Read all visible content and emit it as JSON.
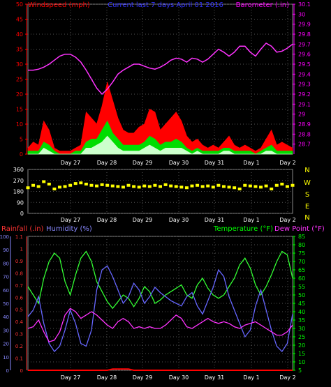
{
  "chart_data": [
    {
      "type": "line",
      "panel": "wind_baro",
      "title": "Current last 7 days April 01 2016",
      "left_axis": {
        "label": "Windspeed (mph)",
        "ticks": [
          0,
          5,
          10,
          15,
          20,
          25,
          30,
          35,
          40,
          45,
          50
        ],
        "ylim": [
          0,
          50
        ],
        "color": "#ff0000"
      },
      "right_axis": {
        "label": "Barometer (.in)",
        "ticks": [
          "28.7",
          "28.8",
          "28.9",
          "29",
          "29.1",
          "29.2",
          "29.3",
          "29.4",
          "29.5",
          "29.6",
          "29.7",
          "29.8",
          "29.9",
          "30",
          "30.1"
        ],
        "ylim": [
          28.6,
          30.1
        ],
        "color": "#ff00ff"
      },
      "x_ticks": [
        "Day 27",
        "Day 28",
        "Day 29",
        "Day 30",
        "Day 31",
        "Day 1",
        "Day 2"
      ],
      "series": [
        {
          "name": "Barometer",
          "color": "#ff33ff",
          "x": [
            0,
            2,
            4,
            6,
            8,
            10,
            12,
            14,
            16,
            18,
            20,
            22,
            24,
            26,
            28,
            30,
            32,
            34,
            36,
            38,
            40,
            42,
            44,
            46,
            48,
            50,
            52,
            54,
            56,
            58,
            60,
            62,
            64,
            66,
            68,
            70,
            72,
            74,
            76,
            78,
            80,
            82,
            84,
            86,
            88,
            90,
            92,
            94,
            96,
            98,
            100
          ],
          "y": [
            29.44,
            29.44,
            29.45,
            29.47,
            29.5,
            29.54,
            29.58,
            29.6,
            29.6,
            29.57,
            29.52,
            29.44,
            29.35,
            29.26,
            29.2,
            29.25,
            29.32,
            29.4,
            29.44,
            29.47,
            29.5,
            29.5,
            29.48,
            29.46,
            29.45,
            29.47,
            29.5,
            29.54,
            29.56,
            29.55,
            29.52,
            29.56,
            29.55,
            29.52,
            29.55,
            29.6,
            29.65,
            29.62,
            29.58,
            29.62,
            29.68,
            29.68,
            29.62,
            29.58,
            29.65,
            29.71,
            29.68,
            29.62,
            29.63,
            29.66,
            29.7
          ]
        },
        {
          "name": "Wind gust",
          "color": "#ff0000",
          "x": [
            0,
            2,
            4,
            6,
            8,
            10,
            12,
            14,
            16,
            18,
            20,
            22,
            24,
            26,
            28,
            30,
            32,
            34,
            36,
            38,
            40,
            42,
            44,
            46,
            48,
            50,
            52,
            54,
            56,
            58,
            60,
            62,
            64,
            66,
            68,
            70,
            72,
            74,
            76,
            78,
            80,
            82,
            84,
            86,
            88,
            90,
            92,
            94,
            96,
            98,
            100
          ],
          "y": [
            2,
            4,
            3,
            11,
            8,
            2,
            1,
            1,
            1,
            2,
            3,
            14,
            12,
            10,
            16,
            24,
            18,
            12,
            8,
            7,
            7,
            9,
            10,
            15,
            14,
            8,
            10,
            12,
            14,
            11,
            6,
            4,
            5,
            3,
            2,
            3,
            2,
            4,
            6,
            3,
            2,
            3,
            2,
            1,
            2,
            5,
            8,
            3,
            4,
            3,
            2
          ]
        },
        {
          "name": "Wind average",
          "color": "#00dd00",
          "x": [
            0,
            2,
            4,
            6,
            8,
            10,
            12,
            14,
            16,
            18,
            20,
            22,
            24,
            26,
            28,
            30,
            32,
            34,
            36,
            38,
            40,
            42,
            44,
            46,
            48,
            50,
            52,
            54,
            56,
            58,
            60,
            62,
            64,
            66,
            68,
            70,
            72,
            74,
            76,
            78,
            80,
            82,
            84,
            86,
            88,
            90,
            92,
            94,
            96,
            98,
            100
          ],
          "y": [
            1,
            1,
            1,
            4,
            3,
            1,
            0,
            0,
            0,
            1,
            1,
            4,
            5,
            5,
            8,
            11,
            7,
            5,
            3,
            3,
            3,
            3,
            4,
            6,
            5,
            3,
            4,
            4,
            5,
            4,
            2,
            1,
            2,
            1,
            1,
            1,
            1,
            2,
            2,
            1,
            1,
            1,
            1,
            0,
            1,
            2,
            3,
            1,
            1,
            1,
            1
          ]
        },
        {
          "name": "Wind low",
          "color": "#ccffcc",
          "x": [
            0,
            2,
            4,
            6,
            8,
            10,
            12,
            14,
            16,
            18,
            20,
            22,
            24,
            26,
            28,
            30,
            32,
            34,
            36,
            38,
            40,
            42,
            44,
            46,
            48,
            50,
            52,
            54,
            56,
            58,
            60,
            62,
            64,
            66,
            68,
            70,
            72,
            74,
            76,
            78,
            80,
            82,
            84,
            86,
            88,
            90,
            92,
            94,
            96,
            98,
            100
          ],
          "y": [
            0,
            0,
            0,
            2,
            1,
            0,
            0,
            0,
            0,
            0,
            0,
            2,
            2,
            3,
            4,
            6,
            4,
            2,
            1,
            1,
            1,
            1,
            2,
            3,
            2,
            1,
            2,
            2,
            2,
            2,
            1,
            0,
            1,
            0,
            0,
            0,
            0,
            1,
            1,
            0,
            0,
            0,
            0,
            0,
            0,
            1,
            1,
            0,
            0,
            0,
            0
          ]
        }
      ]
    },
    {
      "type": "scatter",
      "panel": "wind_direction",
      "left_axis": {
        "ticks": [
          0,
          90,
          180,
          270,
          360
        ],
        "ylim": [
          0,
          360
        ]
      },
      "right_axis": {
        "labels": [
          "N",
          "W",
          "S",
          "E",
          "N"
        ]
      },
      "x_ticks": [
        "Day 27",
        "Day 28",
        "Day 29",
        "Day 30",
        "Day 31",
        "Day 1",
        "Day 2"
      ],
      "series": [
        {
          "name": "Wind direction",
          "color": "#ffff00",
          "x": [
            0,
            2,
            4,
            6,
            8,
            10,
            12,
            14,
            16,
            18,
            20,
            22,
            24,
            26,
            28,
            30,
            32,
            34,
            36,
            38,
            40,
            42,
            44,
            46,
            48,
            50,
            52,
            54,
            56,
            58,
            60,
            62,
            64,
            66,
            68,
            70,
            72,
            74,
            76,
            78,
            80,
            82,
            84,
            86,
            88,
            90,
            92,
            94,
            96,
            98,
            100
          ],
          "y": [
            210,
            230,
            220,
            260,
            240,
            200,
            215,
            220,
            230,
            245,
            250,
            240,
            230,
            225,
            235,
            230,
            225,
            220,
            215,
            230,
            220,
            215,
            225,
            220,
            230,
            220,
            235,
            225,
            220,
            215,
            210,
            225,
            230,
            220,
            225,
            215,
            230,
            220,
            215,
            210,
            200,
            230,
            225,
            220,
            215,
            225,
            200,
            230,
            240,
            220,
            230
          ]
        }
      ]
    },
    {
      "type": "line",
      "panel": "rain_hum_temp",
      "left_axis_1": {
        "label": "Rainfall (.in)",
        "ticks": [
          "0",
          "0.1",
          "0.2",
          "0.3",
          "0.4",
          "0.5",
          "0.6",
          "0.7",
          "0.8",
          "0.9",
          "1",
          "1.1"
        ],
        "ylim": [
          0,
          1.1
        ],
        "color": "#ff3333"
      },
      "left_axis_2": {
        "label": "Humidity (%)",
        "ticks": [
          0,
          10,
          20,
          30,
          40,
          50,
          60,
          70,
          80,
          90,
          100
        ],
        "ylim": [
          0,
          100
        ],
        "color": "#8888ff"
      },
      "right_axis": {
        "label": "Temperature (°F)",
        "label2": "Dew Point (°F)",
        "ticks": [
          5,
          10,
          15,
          20,
          25,
          30,
          35,
          40,
          45,
          50,
          55,
          60,
          65,
          70,
          75,
          80,
          85
        ],
        "ylim": [
          5,
          85
        ],
        "color": "#00ff00"
      },
      "x_ticks": [
        "Day 27",
        "Day 28",
        "Day 29",
        "Day 30",
        "Day 31",
        "Day 1",
        "Day 2"
      ],
      "series": [
        {
          "name": "Temperature",
          "color": "#33ff33",
          "x": [
            0,
            2,
            4,
            6,
            8,
            10,
            12,
            14,
            16,
            18,
            20,
            22,
            24,
            26,
            28,
            30,
            32,
            34,
            36,
            38,
            40,
            42,
            44,
            46,
            48,
            50,
            52,
            54,
            56,
            58,
            60,
            62,
            64,
            66,
            68,
            70,
            72,
            74,
            76,
            78,
            80,
            82,
            84,
            86,
            88,
            90,
            92,
            94,
            96,
            98,
            100
          ],
          "y": [
            55,
            50,
            45,
            60,
            70,
            75,
            72,
            58,
            50,
            62,
            72,
            76,
            70,
            58,
            52,
            46,
            42,
            46,
            50,
            48,
            43,
            48,
            55,
            52,
            45,
            47,
            50,
            52,
            54,
            56,
            50,
            48,
            56,
            60,
            54,
            50,
            48,
            50,
            55,
            60,
            68,
            72,
            66,
            56,
            50,
            55,
            62,
            70,
            76,
            74,
            60
          ]
        },
        {
          "name": "Humidity",
          "color": "#6666ff",
          "x": [
            0,
            2,
            4,
            6,
            8,
            10,
            12,
            14,
            16,
            18,
            20,
            22,
            24,
            26,
            28,
            30,
            32,
            34,
            36,
            38,
            40,
            42,
            44,
            46,
            48,
            50,
            52,
            54,
            56,
            58,
            60,
            62,
            64,
            66,
            68,
            70,
            72,
            74,
            76,
            78,
            80,
            82,
            84,
            86,
            88,
            90,
            92,
            94,
            96,
            98,
            100
          ],
          "y": [
            40,
            45,
            55,
            35,
            20,
            14,
            18,
            30,
            45,
            35,
            20,
            18,
            30,
            60,
            75,
            78,
            70,
            60,
            50,
            55,
            65,
            60,
            50,
            55,
            62,
            58,
            55,
            52,
            50,
            48,
            55,
            58,
            48,
            42,
            52,
            62,
            75,
            70,
            55,
            45,
            35,
            25,
            30,
            48,
            60,
            45,
            30,
            18,
            14,
            20,
            42
          ]
        },
        {
          "name": "Dew Point",
          "color": "#ff33ff",
          "x": [
            0,
            2,
            4,
            6,
            8,
            10,
            12,
            14,
            16,
            18,
            20,
            22,
            24,
            26,
            28,
            30,
            32,
            34,
            36,
            38,
            40,
            42,
            44,
            46,
            48,
            50,
            52,
            54,
            56,
            58,
            60,
            62,
            64,
            66,
            68,
            70,
            72,
            74,
            76,
            78,
            80,
            82,
            84,
            86,
            88,
            90,
            92,
            94,
            96,
            98,
            100
          ],
          "y": [
            30,
            31,
            35,
            28,
            22,
            23,
            28,
            38,
            42,
            40,
            36,
            38,
            40,
            38,
            35,
            32,
            30,
            34,
            36,
            34,
            30,
            31,
            30,
            31,
            30,
            30,
            32,
            35,
            38,
            36,
            31,
            30,
            32,
            34,
            36,
            34,
            33,
            34,
            33,
            31,
            30,
            32,
            33,
            34,
            32,
            30,
            28,
            26,
            26,
            28,
            32
          ]
        },
        {
          "name": "Rainfall",
          "color": "#ff0000",
          "x": [
            0,
            30,
            32,
            34,
            36,
            38,
            40,
            100
          ],
          "y": [
            0,
            0,
            0.01,
            0.01,
            0.01,
            0.01,
            0,
            0
          ]
        }
      ]
    }
  ]
}
